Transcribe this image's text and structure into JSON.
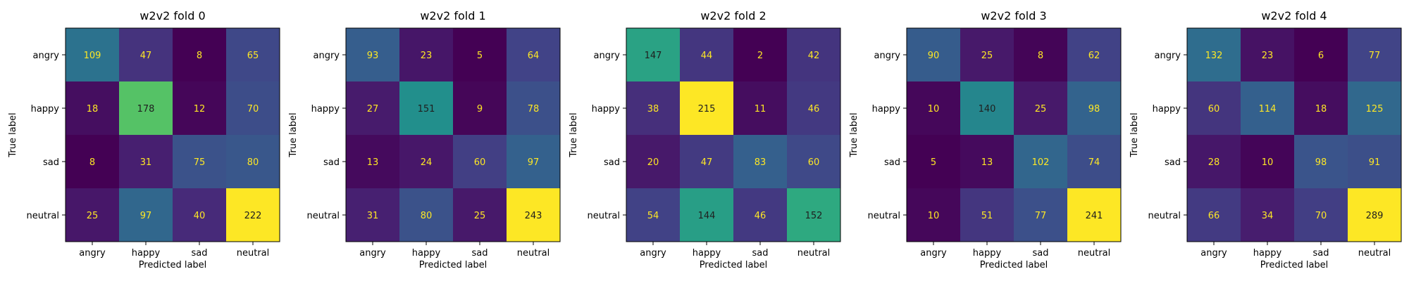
{
  "chart_data": [
    {
      "type": "heatmap",
      "title": "w2v2 fold 0",
      "xlabel": "Predicted label",
      "ylabel": "True label",
      "x_categories": [
        "angry",
        "happy",
        "sad",
        "neutral"
      ],
      "y_categories": [
        "angry",
        "happy",
        "sad",
        "neutral"
      ],
      "colormap": "viridis",
      "grid": false,
      "values": [
        [
          109,
          47,
          8,
          65
        ],
        [
          18,
          178,
          12,
          70
        ],
        [
          8,
          31,
          75,
          80
        ],
        [
          25,
          97,
          40,
          222
        ]
      ]
    },
    {
      "type": "heatmap",
      "title": "w2v2 fold 1",
      "xlabel": "Predicted label",
      "ylabel": "True label",
      "x_categories": [
        "angry",
        "happy",
        "sad",
        "neutral"
      ],
      "y_categories": [
        "angry",
        "happy",
        "sad",
        "neutral"
      ],
      "colormap": "viridis",
      "grid": false,
      "values": [
        [
          93,
          23,
          5,
          64
        ],
        [
          27,
          151,
          9,
          78
        ],
        [
          13,
          24,
          60,
          97
        ],
        [
          31,
          80,
          25,
          243
        ]
      ]
    },
    {
      "type": "heatmap",
      "title": "w2v2 fold 2",
      "xlabel": "Predicted label",
      "ylabel": "True label",
      "x_categories": [
        "angry",
        "happy",
        "sad",
        "neutral"
      ],
      "y_categories": [
        "angry",
        "happy",
        "sad",
        "neutral"
      ],
      "colormap": "viridis",
      "grid": false,
      "values": [
        [
          147,
          44,
          2,
          42
        ],
        [
          38,
          215,
          11,
          46
        ],
        [
          20,
          47,
          83,
          60
        ],
        [
          54,
          144,
          46,
          152
        ]
      ]
    },
    {
      "type": "heatmap",
      "title": "w2v2 fold 3",
      "xlabel": "Predicted label",
      "ylabel": "True label",
      "x_categories": [
        "angry",
        "happy",
        "sad",
        "neutral"
      ],
      "y_categories": [
        "angry",
        "happy",
        "sad",
        "neutral"
      ],
      "colormap": "viridis",
      "grid": false,
      "values": [
        [
          90,
          25,
          8,
          62
        ],
        [
          10,
          140,
          25,
          98
        ],
        [
          5,
          13,
          102,
          74
        ],
        [
          10,
          51,
          77,
          241
        ]
      ]
    },
    {
      "type": "heatmap",
      "title": "w2v2 fold 4",
      "xlabel": "Predicted label",
      "ylabel": "True label",
      "x_categories": [
        "angry",
        "happy",
        "sad",
        "neutral"
      ],
      "y_categories": [
        "angry",
        "happy",
        "sad",
        "neutral"
      ],
      "colormap": "viridis",
      "grid": false,
      "values": [
        [
          132,
          23,
          6,
          77
        ],
        [
          60,
          114,
          18,
          125
        ],
        [
          28,
          10,
          98,
          91
        ],
        [
          66,
          34,
          70,
          289
        ]
      ]
    }
  ]
}
